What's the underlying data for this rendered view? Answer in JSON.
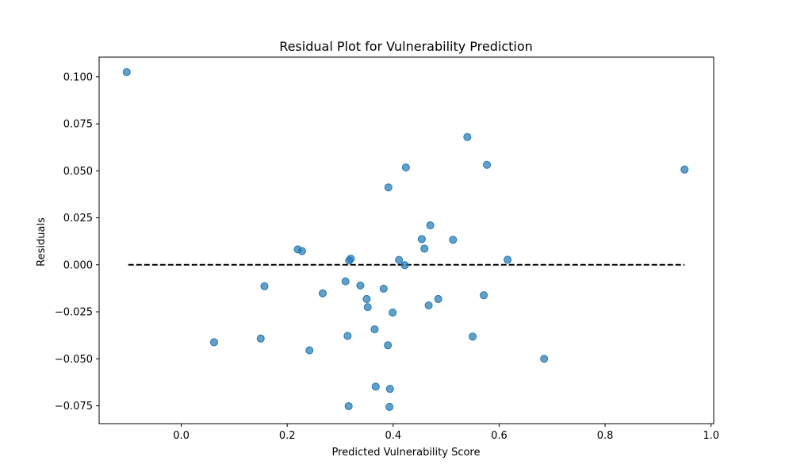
{
  "chart_data": {
    "type": "scatter",
    "title": "Residual Plot for Vulnerability Prediction",
    "xlabel": "Predicted Vulnerability Score",
    "ylabel": "Residuals",
    "xlim": [
      -0.155,
      1.005
    ],
    "ylim": [
      -0.0845,
      0.1105
    ],
    "xticks": [
      0.0,
      0.2,
      0.4,
      0.6,
      0.8,
      1.0
    ],
    "xtick_labels": [
      "0.0",
      "0.2",
      "0.4",
      "0.6",
      "0.8",
      "1.0"
    ],
    "yticks": [
      -0.075,
      -0.05,
      -0.025,
      0.0,
      0.025,
      0.05,
      0.075,
      0.1
    ],
    "ytick_labels": [
      "−0.075",
      "−0.050",
      "−0.025",
      "0.000",
      "0.025",
      "0.050",
      "0.075",
      "0.100"
    ],
    "grid": false,
    "point_color": "#1f77b4",
    "reference_line": {
      "y": 0,
      "x_from": -0.1,
      "x_to": 0.95,
      "style": "dashed",
      "color": "#000000"
    },
    "points": [
      {
        "x": -0.103,
        "y": 0.1025
      },
      {
        "x": 0.54,
        "y": 0.068
      },
      {
        "x": 0.577,
        "y": 0.0532
      },
      {
        "x": 0.424,
        "y": 0.0518
      },
      {
        "x": 0.95,
        "y": 0.0507
      },
      {
        "x": 0.391,
        "y": 0.0412
      },
      {
        "x": 0.47,
        "y": 0.021
      },
      {
        "x": 0.454,
        "y": 0.0137
      },
      {
        "x": 0.513,
        "y": 0.0133
      },
      {
        "x": 0.459,
        "y": 0.0086
      },
      {
        "x": 0.22,
        "y": 0.0082
      },
      {
        "x": 0.228,
        "y": 0.0073
      },
      {
        "x": 0.32,
        "y": 0.0033
      },
      {
        "x": 0.317,
        "y": 0.0023
      },
      {
        "x": 0.411,
        "y": 0.0026
      },
      {
        "x": 0.616,
        "y": 0.0027
      },
      {
        "x": 0.422,
        "y": -0.0002
      },
      {
        "x": 0.31,
        "y": -0.0088
      },
      {
        "x": 0.338,
        "y": -0.011
      },
      {
        "x": 0.157,
        "y": -0.0114
      },
      {
        "x": 0.382,
        "y": -0.0127
      },
      {
        "x": 0.267,
        "y": -0.0152
      },
      {
        "x": 0.571,
        "y": -0.0162
      },
      {
        "x": 0.35,
        "y": -0.0182
      },
      {
        "x": 0.485,
        "y": -0.0182
      },
      {
        "x": 0.467,
        "y": -0.0216
      },
      {
        "x": 0.352,
        "y": -0.0225
      },
      {
        "x": 0.399,
        "y": -0.0254
      },
      {
        "x": 0.365,
        "y": -0.0343
      },
      {
        "x": 0.314,
        "y": -0.0378
      },
      {
        "x": 0.55,
        "y": -0.0382
      },
      {
        "x": 0.15,
        "y": -0.0392
      },
      {
        "x": 0.062,
        "y": -0.0412
      },
      {
        "x": 0.39,
        "y": -0.0428
      },
      {
        "x": 0.242,
        "y": -0.0455
      },
      {
        "x": 0.685,
        "y": -0.05
      },
      {
        "x": 0.367,
        "y": -0.0648
      },
      {
        "x": 0.394,
        "y": -0.066
      },
      {
        "x": 0.316,
        "y": -0.0752
      },
      {
        "x": 0.393,
        "y": -0.0756
      }
    ]
  }
}
